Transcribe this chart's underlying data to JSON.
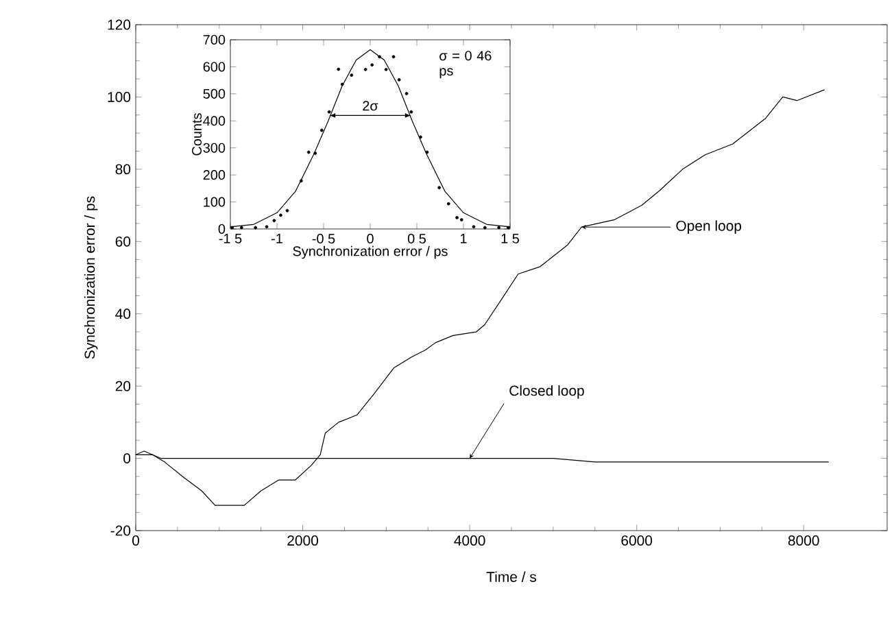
{
  "chart_data": [
    {
      "type": "line",
      "xlabel": "Time / s",
      "ylabel": "Synchronization error / ps",
      "xlim": [
        0,
        9000
      ],
      "ylim": [
        -20,
        120
      ],
      "xticks": [
        0,
        2000,
        4000,
        6000,
        8000
      ],
      "yticks": [
        -20,
        0,
        20,
        40,
        60,
        80,
        100,
        120
      ],
      "grid": false,
      "line_style": "solid",
      "series": [
        {
          "name": "Open loop",
          "color": "#000000",
          "x": [
            0,
            200,
            345,
            560,
            790,
            950,
            1300,
            1500,
            1710,
            1910,
            2100,
            2210,
            2270,
            2430,
            2650,
            2860,
            3090,
            3300,
            3470,
            3590,
            3800,
            4080,
            4180,
            4410,
            4580,
            4840,
            5170,
            5340,
            5730,
            6060,
            6270,
            6550,
            6820,
            7150,
            7540,
            7750,
            7920,
            8250
          ],
          "values": [
            1,
            1,
            -1,
            -5,
            -9,
            -13,
            -13,
            -9,
            -6,
            -6,
            -2,
            1,
            7,
            10,
            12,
            18,
            25,
            28,
            30,
            32,
            34,
            35,
            37,
            45,
            51,
            53,
            59,
            64,
            66,
            70,
            74,
            80,
            84,
            87,
            94,
            100,
            99,
            102
          ]
        },
        {
          "name": "Closed loop",
          "color": "#000000",
          "x": [
            0,
            100,
            200,
            300,
            500,
            1000,
            1500,
            2000,
            2500,
            3000,
            3500,
            4000,
            4500,
            5000,
            5500,
            6000,
            6500,
            7000,
            7500,
            8000,
            8300
          ],
          "values": [
            1,
            2,
            1,
            0,
            0,
            0,
            0,
            0,
            0,
            0,
            0,
            0,
            0,
            0,
            -1,
            -1,
            -1,
            -1,
            -1,
            -1,
            -1
          ]
        }
      ]
    },
    {
      "type": "scatter",
      "xlabel": "Synchronization error / ps",
      "ylabel": "Counts",
      "xlim": [
        -1.5,
        1.5
      ],
      "ylim": [
        0,
        700
      ],
      "xticks": [
        {
          "value": -1.5,
          "label": "-1 5"
        },
        {
          "value": -1,
          "label": "-1"
        },
        {
          "value": -0.5,
          "label": "-0 5"
        },
        {
          "value": 0,
          "label": "0"
        },
        {
          "value": 0.5,
          "label": "0 5"
        },
        {
          "value": 1,
          "label": "1"
        },
        {
          "value": 1.5,
          "label": "1 5"
        }
      ],
      "yticks": [
        0,
        100,
        200,
        300,
        400,
        500,
        600,
        700
      ],
      "grid": false,
      "annotations": [
        "σ = 0 46 ps",
        "2σ"
      ],
      "series": [
        {
          "type": "scatter",
          "marker": "circle",
          "color": "#000000",
          "x": [
            -1.48,
            -1.38,
            -1.23,
            -1.11,
            -1.03,
            -0.96,
            -0.89,
            -0.74,
            -0.66,
            -0.59,
            -0.52,
            -0.44,
            -0.34,
            -0.3,
            -0.2,
            -0.05,
            0.02,
            0.1,
            0.17,
            0.25,
            0.31,
            0.39,
            0.44,
            0.54,
            0.61,
            0.74,
            0.84,
            0.93,
            0.98,
            1.11,
            1.23,
            1.38,
            1.48
          ],
          "values": [
            5,
            5,
            5,
            8,
            31,
            51,
            68,
            178,
            284,
            280,
            365,
            433,
            591,
            535,
            569,
            590,
            607,
            637,
            590,
            637,
            552,
            501,
            433,
            340,
            284,
            153,
            93,
            42,
            34,
            8,
            5,
            5,
            5
          ]
        },
        {
          "type": "line",
          "color": "#000000",
          "x": [
            -1.5,
            -1.25,
            -1.0,
            -0.8,
            -0.6,
            -0.45,
            -0.3,
            -0.15,
            0,
            0.15,
            0.3,
            0.45,
            0.6,
            0.8,
            1.0,
            1.25,
            1.5
          ],
          "values": [
            8,
            17,
            60,
            140,
            280,
            400,
            530,
            625,
            663,
            625,
            530,
            400,
            280,
            140,
            60,
            17,
            8
          ]
        }
      ]
    }
  ]
}
